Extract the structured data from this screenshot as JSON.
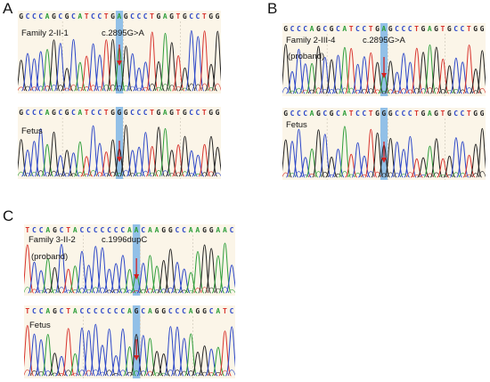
{
  "panels": [
    {
      "letter": "A",
      "traces": [
        {
          "sequence": "GCCCAGCGCATCCTGAGCCCTGAGTGCCTGG",
          "labels": [
            "Family 2-II-1",
            "c.2895G>A"
          ]
        },
        {
          "sequence": "GCCCAGCGCATCCTGGGCCCTGAGTGCCTGG",
          "labels": [
            "Fetus"
          ]
        }
      ]
    },
    {
      "letter": "B",
      "traces": [
        {
          "sequence": "GCCCAGCGCATCCTGAGCCCTGAGTGCCTGG",
          "labels": [
            "Family 2-III-4",
            "c.2895G>A",
            "(proband)"
          ]
        },
        {
          "sequence": "GCCCAGCGCATCCTGGGCCCTGAGTGCCTGG",
          "labels": [
            "Fetus"
          ]
        }
      ]
    },
    {
      "letter": "C",
      "traces": [
        {
          "sequence": "TCCAGCTACCCCCCCAACAAGGCCAAGGAAC",
          "labels": [
            "Family 3-II-2",
            "c.1996dupC",
            "(proband)"
          ]
        },
        {
          "sequence": "TCCAGCTACCCCCCCAGCAGGCCCAGGCATC",
          "labels": [
            "Fetus"
          ]
        }
      ]
    }
  ],
  "base_colors": {
    "A": "#2e9e3a",
    "C": "#2b46c8",
    "G": "#222222",
    "T": "#d8342e"
  },
  "highlight_color": "#7fb6e6",
  "arrow_color": "#d32020"
}
